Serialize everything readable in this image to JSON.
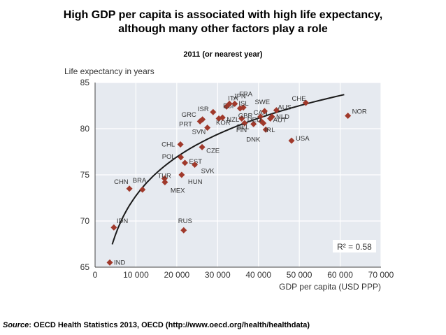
{
  "page": {
    "title_line1": "High GDP per capita is associated with high life expectancy,",
    "title_line2": "although many other factors play a role",
    "subtitle": "2011 (or nearest year)",
    "source_label": "Source",
    "source_text": ": OECD Health Statistics 2013, OECD (http://www.oecd.org/health/healthdata)"
  },
  "chart_data": {
    "type": "scatter",
    "ylabel": "Life expectancy in years",
    "xlabel": "GDP per capita (USD PPP)",
    "xlim": [
      0,
      70000
    ],
    "ylim": [
      65,
      85
    ],
    "xticks": [
      0,
      10000,
      20000,
      30000,
      40000,
      50000,
      60000,
      70000
    ],
    "xtick_labels": [
      "0",
      "10 000",
      "20 000",
      "30 000",
      "40 000",
      "50 000",
      "60 000",
      "70 000"
    ],
    "yticks": [
      65,
      70,
      75,
      80,
      85
    ],
    "grid": true,
    "marker_color": "#a0392b",
    "trend_color": "#1a1a1a",
    "annotation": "R² = 0.58",
    "trend": {
      "type": "logarithmic",
      "x_start": 4200,
      "x_end": 61000
    },
    "points": [
      {
        "label": "IND",
        "x": 3600,
        "y": 65.5
      },
      {
        "label": "IDN",
        "x": 4600,
        "y": 69.3
      },
      {
        "label": "CHN",
        "x": 8400,
        "y": 73.5
      },
      {
        "label": "BRA",
        "x": 11600,
        "y": 73.4
      },
      {
        "label": "TUR",
        "x": 17000,
        "y": 74.6
      },
      {
        "label": "MEX",
        "x": 17100,
        "y": 74.2
      },
      {
        "label": "RUS",
        "x": 21700,
        "y": 69.0
      },
      {
        "label": "CHL",
        "x": 20900,
        "y": 78.3
      },
      {
        "label": "POL",
        "x": 21000,
        "y": 76.9
      },
      {
        "label": "HUN",
        "x": 21200,
        "y": 75.0
      },
      {
        "label": "EST",
        "x": 22000,
        "y": 76.3
      },
      {
        "label": "SVK",
        "x": 24400,
        "y": 76.1
      },
      {
        "label": "CZE",
        "x": 26200,
        "y": 78.0
      },
      {
        "label": "PRT",
        "x": 25700,
        "y": 80.8
      },
      {
        "label": "GRC",
        "x": 26300,
        "y": 81.0
      },
      {
        "label": "SVN",
        "x": 27500,
        "y": 80.1
      },
      {
        "label": "KOR",
        "x": 30300,
        "y": 81.1
      },
      {
        "label": "ISR",
        "x": 28900,
        "y": 81.8
      },
      {
        "label": "ESP",
        "x": 32200,
        "y": 82.4
      },
      {
        "label": "NZL",
        "x": 31200,
        "y": 81.2
      },
      {
        "label": "ITA",
        "x": 32900,
        "y": 82.7
      },
      {
        "label": "JPN",
        "x": 34200,
        "y": 82.7
      },
      {
        "label": "FRA",
        "x": 36300,
        "y": 82.3
      },
      {
        "label": "ISL",
        "x": 35500,
        "y": 82.2
      },
      {
        "label": "FIN",
        "x": 36600,
        "y": 80.6
      },
      {
        "label": "GBR",
        "x": 35900,
        "y": 81.1
      },
      {
        "label": "BEL",
        "x": 38800,
        "y": 80.5
      },
      {
        "label": "CAN",
        "x": 40500,
        "y": 81.3
      },
      {
        "label": "SWE",
        "x": 41500,
        "y": 81.9
      },
      {
        "label": "DEU",
        "x": 40700,
        "y": 80.8
      },
      {
        "label": "DNK",
        "x": 41800,
        "y": 79.9
      },
      {
        "label": "AUT",
        "x": 42900,
        "y": 81.1
      },
      {
        "label": "IRL",
        "x": 41200,
        "y": 80.6
      },
      {
        "label": "NLD",
        "x": 43300,
        "y": 81.3
      },
      {
        "label": "AUS",
        "x": 44400,
        "y": 82.0
      },
      {
        "label": "USA",
        "x": 48100,
        "y": 78.7
      },
      {
        "label": "CHE",
        "x": 51600,
        "y": 82.8
      },
      {
        "label": "NOR",
        "x": 61900,
        "y": 81.4
      }
    ]
  }
}
